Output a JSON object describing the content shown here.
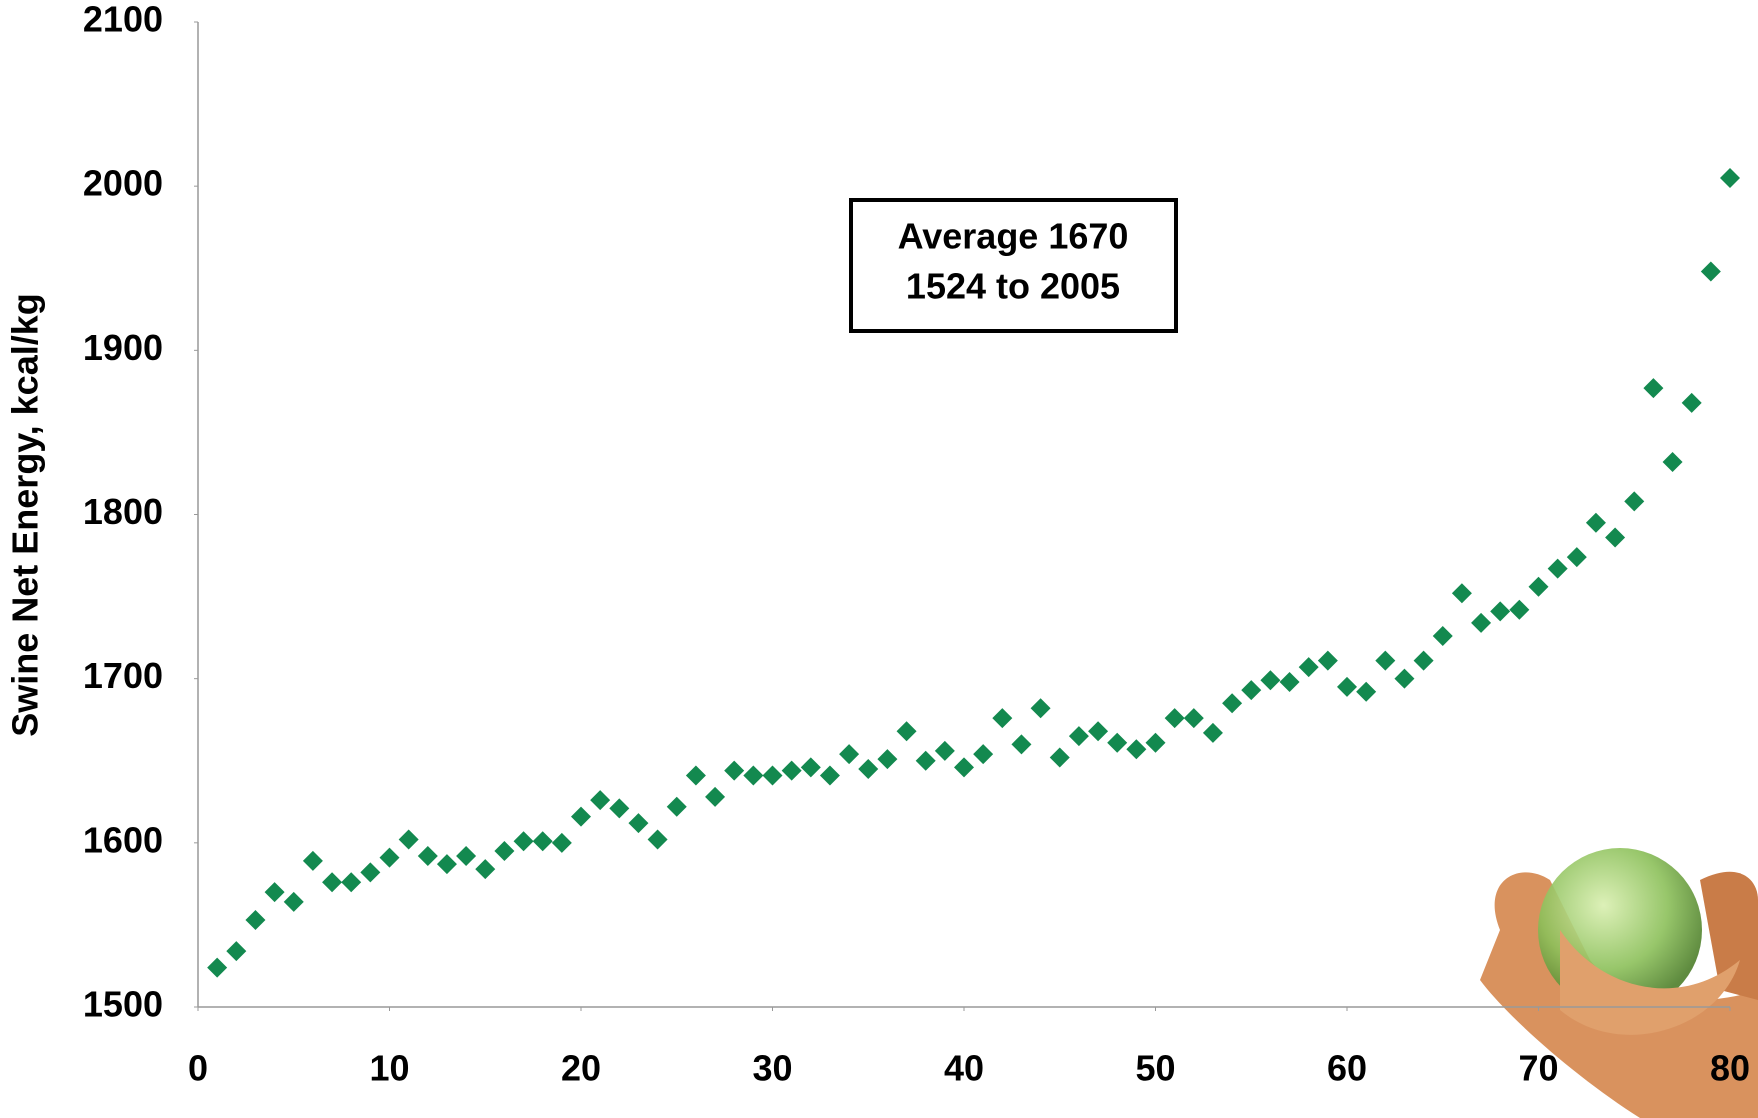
{
  "chart_data": {
    "type": "scatter",
    "y_label": "Swine Net Energy, kcal/kg",
    "annotations": [
      "Average 1670",
      "1524 to 2005"
    ],
    "color": "#13894f",
    "x": [
      1,
      2,
      3,
      4,
      5,
      6,
      7,
      8,
      9,
      10,
      11,
      12,
      13,
      14,
      15,
      16,
      17,
      18,
      19,
      20,
      21,
      22,
      23,
      24,
      25,
      26,
      27,
      28,
      29,
      30,
      31,
      32,
      33,
      34,
      35,
      36,
      37,
      38,
      39,
      40,
      41,
      42,
      43,
      44,
      45,
      46,
      47,
      48,
      49,
      50,
      51,
      52,
      53,
      54,
      55,
      56,
      57,
      58,
      59,
      60,
      61,
      62,
      63,
      64,
      65,
      66,
      67,
      68,
      69,
      70,
      71,
      72,
      73,
      74,
      75,
      76,
      77,
      78,
      79,
      80
    ],
    "values": [
      1524,
      1534,
      1553,
      1570,
      1564,
      1589,
      1576,
      1576,
      1582,
      1591,
      1602,
      1592,
      1587,
      1592,
      1584,
      1595,
      1601,
      1601,
      1600,
      1616,
      1626,
      1621,
      1612,
      1602,
      1622,
      1641,
      1628,
      1644,
      1641,
      1641,
      1644,
      1646,
      1641,
      1654,
      1645,
      1651,
      1668,
      1650,
      1656,
      1646,
      1654,
      1676,
      1660,
      1682,
      1652,
      1665,
      1668,
      1661,
      1657,
      1661,
      1676,
      1676,
      1667,
      1685,
      1693,
      1699,
      1698,
      1707,
      1711,
      1695,
      1692,
      1711,
      1700,
      1711,
      1726,
      1752,
      1734,
      1741,
      1742,
      1756,
      1767,
      1774,
      1795,
      1786,
      1808,
      1877,
      1832,
      1868,
      1948,
      2005
    ],
    "xlim": [
      0,
      80
    ],
    "xticks": [
      0,
      10,
      20,
      30,
      40,
      50,
      60,
      70,
      80
    ],
    "ylim": [
      1500,
      2100
    ],
    "yticks": [
      1500,
      1600,
      1700,
      1800,
      1900,
      2000,
      2100
    ],
    "grid": false
  }
}
